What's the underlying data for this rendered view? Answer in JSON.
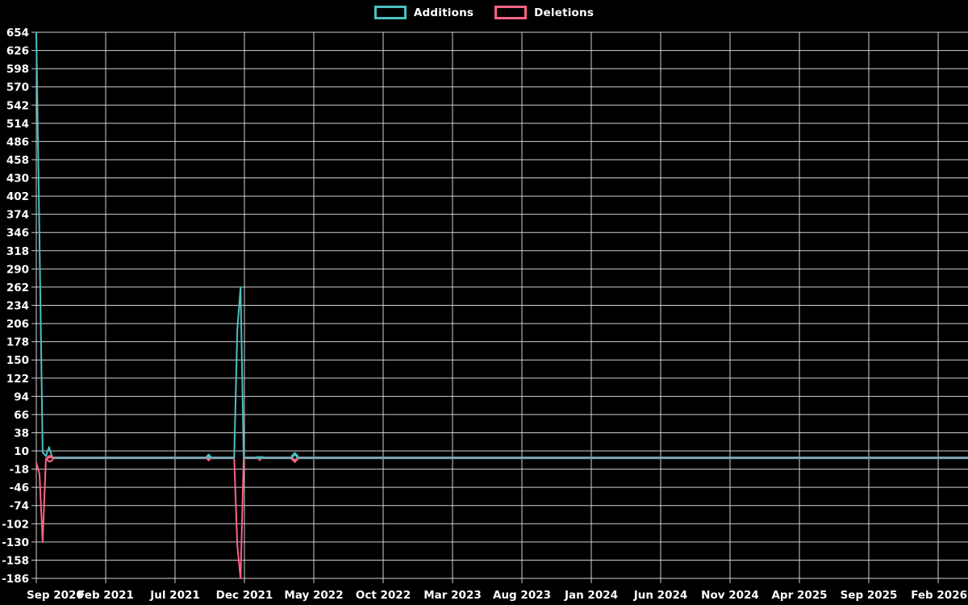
{
  "chart_data": {
    "type": "line",
    "title": "",
    "legend_position": "top-center",
    "grid": true,
    "background": "#000000",
    "grid_color": "#e6e6e6",
    "text_color": "#ffffff",
    "zero_overlap_color": "#7ba3af",
    "legend": [
      {
        "name": "Additions",
        "color": "#4bc0c0"
      },
      {
        "name": "Deletions",
        "color": "#ff6384"
      }
    ],
    "x_unit": "week",
    "x_tick_labels": [
      "Sep 2020",
      "Feb 2021",
      "Jul 2021",
      "Dec 2021",
      "May 2022",
      "Oct 2022",
      "Mar 2023",
      "Aug 2023",
      "Jan 2024",
      "Jun 2024",
      "Nov 2024",
      "Apr 2025",
      "Sep 2025",
      "Feb 2026"
    ],
    "y_ticks": [
      654,
      626,
      598,
      570,
      542,
      514,
      486,
      458,
      430,
      402,
      374,
      346,
      318,
      290,
      262,
      234,
      206,
      178,
      150,
      122,
      94,
      66,
      38,
      10,
      -18,
      -46,
      -74,
      -102,
      -130,
      -158,
      -186
    ],
    "ylim": [
      -186,
      654
    ],
    "series": [
      {
        "name": "Additions",
        "color": "#4bc0c0",
        "default_value": 0,
        "nonzero_points": {
          "0": 654,
          "1": 331,
          "2": 8,
          "3": 2,
          "4": 16,
          "63": 196,
          "64": 262
        }
      },
      {
        "name": "Deletions",
        "color": "#ff6384",
        "default_value": 0,
        "nonzero_points": {
          "0": -8,
          "1": -26,
          "2": -130,
          "3": -2,
          "63": -136,
          "64": -186
        }
      }
    ],
    "markers": [
      {
        "index": 4,
        "series": "deletions",
        "shape": "circle"
      },
      {
        "index": 54,
        "series": "both",
        "shape": "diamond-small"
      },
      {
        "index": 70,
        "series": "both",
        "shape": "dash"
      },
      {
        "index": 81,
        "series": "both",
        "shape": "diamond"
      }
    ]
  }
}
